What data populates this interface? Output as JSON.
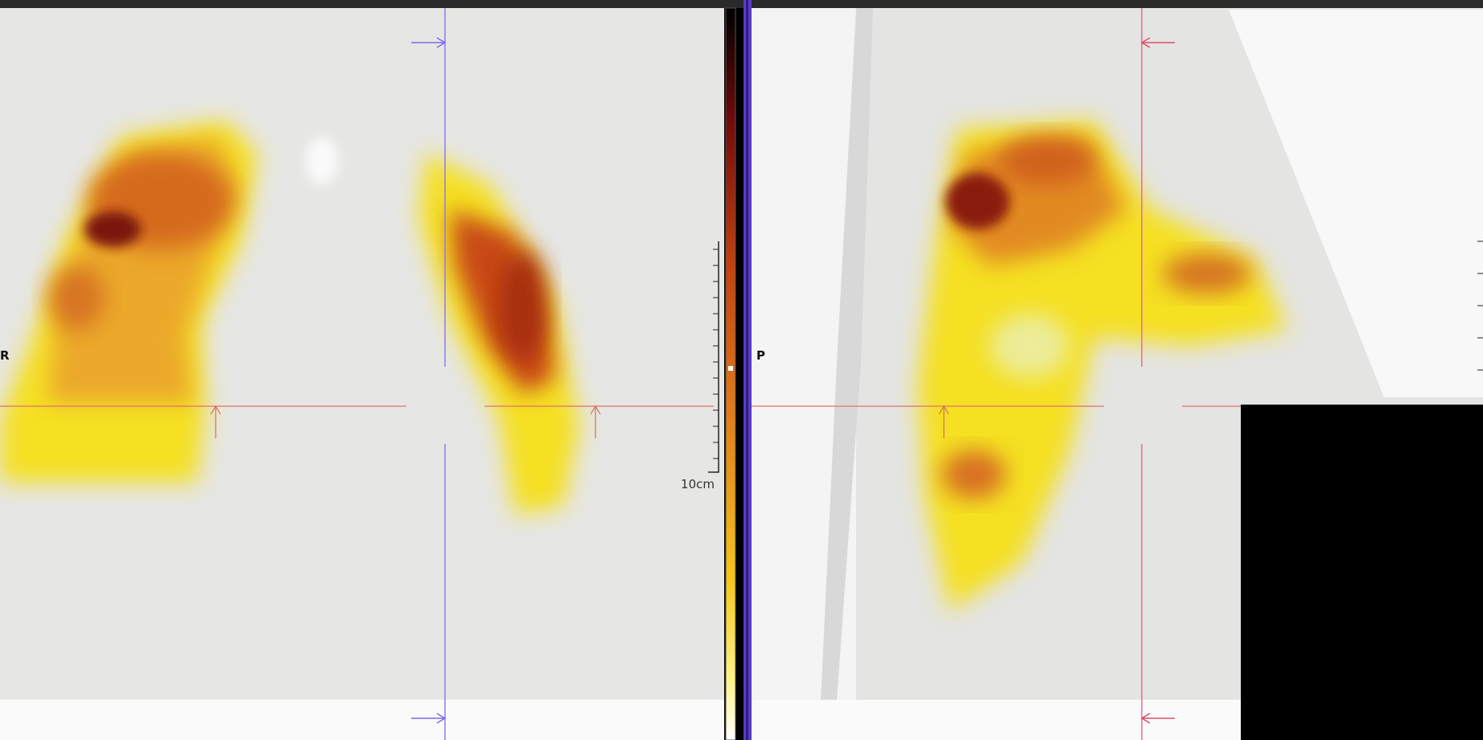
{
  "viewer": {
    "left_orientation": "R",
    "right_orientation": "P",
    "scale_label": "10cm"
  }
}
